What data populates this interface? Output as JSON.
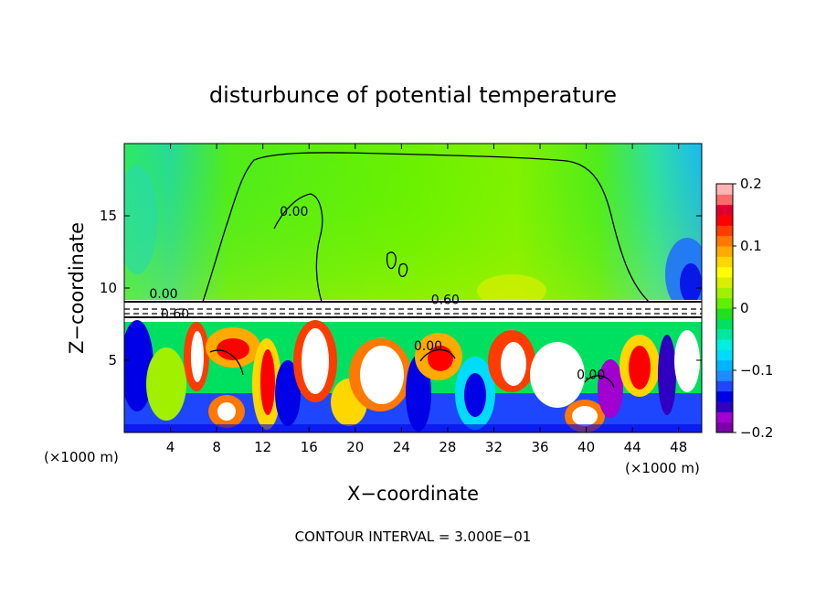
{
  "chart_data": {
    "type": "heatmap",
    "title": "disturbunce of potential temperature",
    "xlabel": "X−coordinate",
    "ylabel": "Z−coordinate",
    "x_unit": "(×1000 m)",
    "x_unit_right": "(×1000 m)",
    "xlim": [
      0,
      50
    ],
    "ylim": [
      0,
      20
    ],
    "x_ticks": [
      4,
      8,
      12,
      16,
      20,
      24,
      28,
      32,
      36,
      40,
      44,
      48
    ],
    "y_ticks": [
      5,
      10,
      15
    ],
    "footer": "CONTOUR INTERVAL = 3.000E−01",
    "contour_labels": [
      {
        "text": "0.00",
        "x": 14.7,
        "z": 15.0
      },
      {
        "text": "0.00",
        "x": 3.4,
        "z": 9.3
      },
      {
        "text": "0.60",
        "x": 27.8,
        "z": 8.9
      },
      {
        "text": "0.60",
        "x": 4.4,
        "z": 7.9
      },
      {
        "text": "0.00",
        "x": 26.3,
        "z": 5.7
      },
      {
        "text": "0.00",
        "x": 40.4,
        "z": 3.7
      }
    ],
    "colorbar": {
      "min": -0.2,
      "max": 0.2,
      "ticks": [
        "0.2",
        "0.1",
        "0",
        "−0.1",
        "−0.2"
      ],
      "colors": [
        "#7a00a8",
        "#a000d0",
        "#3000c0",
        "#0000e6",
        "#1e46ff",
        "#1e8cff",
        "#00b4ff",
        "#00dcff",
        "#00f0e0",
        "#00e8a0",
        "#00e060",
        "#20e020",
        "#60f000",
        "#a0f000",
        "#d8f000",
        "#ffff00",
        "#ffd700",
        "#ffaa00",
        "#ff7800",
        "#ff3c00",
        "#ff0000",
        "#e00030",
        "#ff6a6a",
        "#ffb4b4"
      ]
    }
  }
}
